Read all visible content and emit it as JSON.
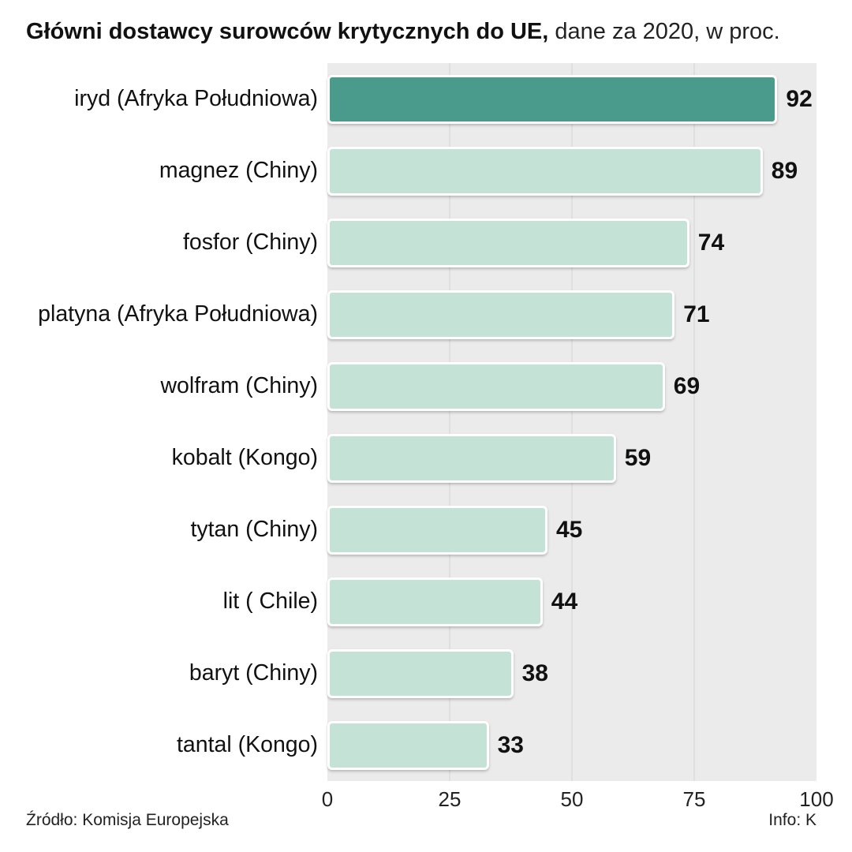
{
  "title": {
    "bold": "Główni dostawcy surowców krytycznych do UE,",
    "regular": " dane za 2020, w proc."
  },
  "footer": {
    "source": "Źródło: Komisja Europejska",
    "credit": "Info: K"
  },
  "colors": {
    "highlight_bar": "#4a9b8c",
    "bar": "#c5e2d6",
    "plot_background": "#ebebeb",
    "text": "#111111"
  },
  "chart_data": {
    "type": "bar",
    "orientation": "horizontal",
    "title": "Główni dostawcy surowców krytycznych do UE, dane za 2020, w proc.",
    "categories": [
      "iryd (Afryka Południowa)",
      "magnez (Chiny)",
      "fosfor (Chiny)",
      "platyna (Afryka Południowa)",
      "wolfram (Chiny)",
      "kobalt (Kongo)",
      "tytan (Chiny)",
      "lit ( Chile)",
      "baryt (Chiny)",
      "tantal (Kongo)"
    ],
    "values": [
      92,
      89,
      74,
      71,
      69,
      59,
      45,
      44,
      38,
      33
    ],
    "highlight_index": 0,
    "x_ticks": [
      0,
      25,
      50,
      75,
      100
    ],
    "xlim": [
      0,
      100
    ],
    "grid": true,
    "legend": false,
    "xlabel": "",
    "ylabel": ""
  }
}
